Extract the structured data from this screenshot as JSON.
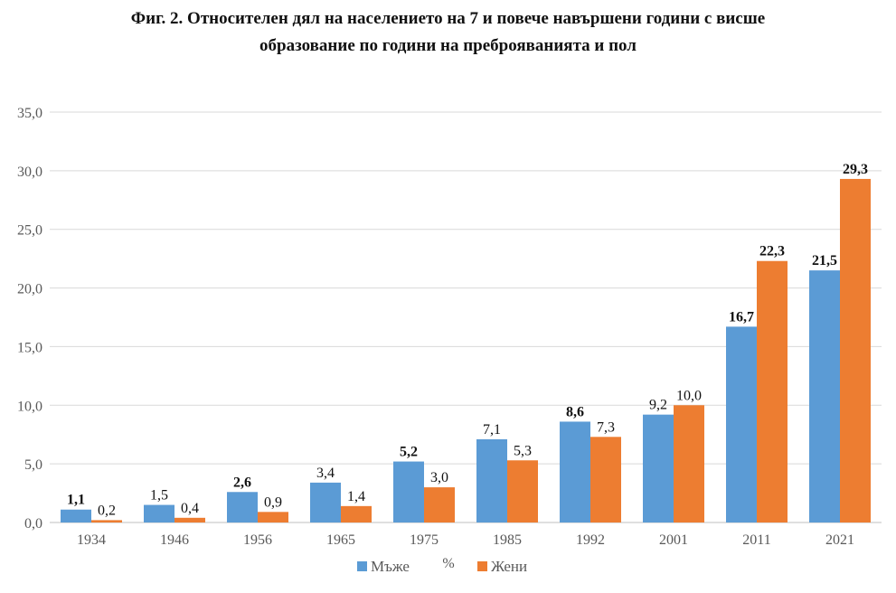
{
  "chart_data": {
    "type": "bar",
    "title_line1": "Фиг. 2. Относителен дял на населението на 7 и повече навършени години с висше",
    "title_line2": "образование по години на преброяванията и пол",
    "categories": [
      "1934",
      "1946",
      "1956",
      "1965",
      "1975",
      "1985",
      "1992",
      "2001",
      "2011",
      "2021"
    ],
    "series": [
      {
        "name": "Мъже",
        "color": "#5B9BD5",
        "values": [
          1.1,
          1.5,
          2.6,
          3.4,
          5.2,
          7.1,
          8.6,
          9.2,
          16.7,
          21.5
        ],
        "labels": [
          "1,1",
          "1,5",
          "2,6",
          "3,4",
          "5,2",
          "7,1",
          "8,6",
          "9,2",
          "16,7",
          "21,5"
        ]
      },
      {
        "name": "Жени",
        "color": "#ED7D31",
        "values": [
          0.2,
          0.4,
          0.9,
          1.4,
          3.0,
          5.3,
          7.3,
          10.0,
          22.3,
          29.3
        ],
        "labels": [
          "0,2",
          "0,4",
          "0,9",
          "1,4",
          "3,0",
          "5,3",
          "7,3",
          "10,0",
          "22,3",
          "29,3"
        ]
      }
    ],
    "ylim": [
      0,
      35
    ],
    "yticks": [
      "0,0",
      "5,0",
      "10,0",
      "15,0",
      "20,0",
      "25,0",
      "30,0",
      "35,0"
    ],
    "ylabel": "%",
    "legend_position": "bottom",
    "grid": true
  }
}
